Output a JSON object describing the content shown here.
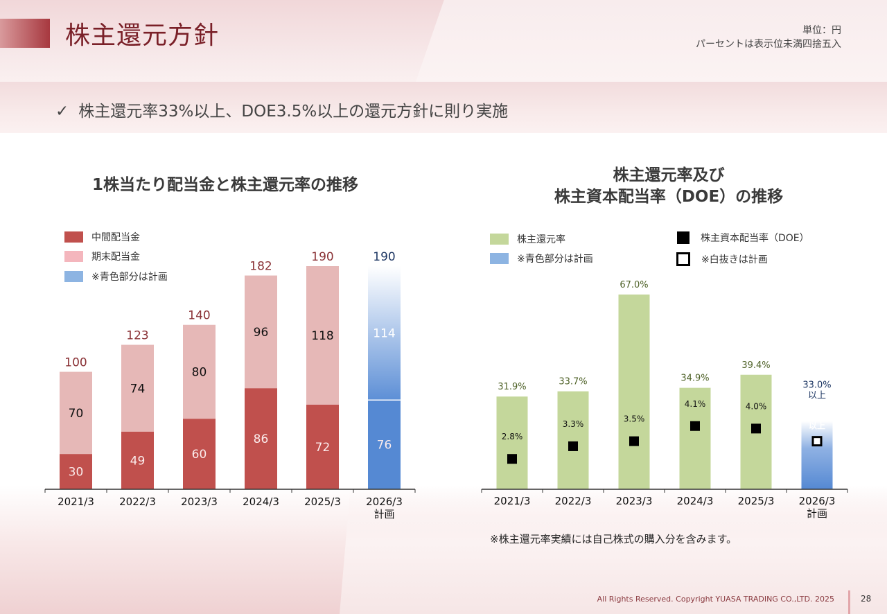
{
  "header": {
    "title": "株主還元方針",
    "unit_line1": "単位：円",
    "unit_line2": "パーセントは表示位未満四捨五入"
  },
  "policy": {
    "check_icon": "✓",
    "text": "株主還元率33%以上、DOE3.5%以上の還元方針に則り実施"
  },
  "colors": {
    "interim": "#c0504d",
    "year_end": "#e6b8b7",
    "plan_blue": "#5589d3",
    "payout_green": "#c4d79b",
    "title_red": "#7a2028",
    "total_label_red": "#8a3236",
    "plan_label_blue": "#1f3864"
  },
  "chart_data": [
    {
      "type": "bar",
      "stacked": true,
      "title": "1株当たり配当金と株主還元率の推移",
      "categories": [
        "2021/3",
        "2022/3",
        "2023/3",
        "2024/3",
        "2025/3",
        "2026/3"
      ],
      "category_sublabels": [
        "",
        "",
        "",
        "",
        "",
        "計画"
      ],
      "series": [
        {
          "name": "中間配当金",
          "values": [
            30,
            49,
            60,
            86,
            72,
            76
          ]
        },
        {
          "name": "期末配当金",
          "values": [
            70,
            74,
            80,
            96,
            118,
            114
          ]
        }
      ],
      "totals": [
        100,
        123,
        140,
        182,
        190,
        190
      ],
      "planned": [
        false,
        false,
        false,
        false,
        false,
        true
      ],
      "legend": [
        {
          "label": "中間配当金",
          "swatch": "interim"
        },
        {
          "label": "期末配当金",
          "swatch": "year_end"
        },
        {
          "label": "※青色部分は計画",
          "swatch": "plan"
        }
      ],
      "legend_position": "top-left",
      "ylim": [
        0,
        200
      ],
      "xlabel": "",
      "ylabel": "",
      "grid": false
    },
    {
      "type": "bar",
      "title_line1": "株主還元率及び",
      "title_line2": "株主資本配当率（DOE）の推移",
      "categories": [
        "2021/3",
        "2022/3",
        "2023/3",
        "2024/3",
        "2025/3",
        "2026/3"
      ],
      "category_sublabels": [
        "",
        "",
        "",
        "",
        "",
        "計画"
      ],
      "series": [
        {
          "name": "株主還元率",
          "type": "bar",
          "values": [
            31.9,
            33.7,
            67.0,
            34.9,
            39.4,
            33.0
          ],
          "labels": [
            "31.9%",
            "33.7%",
            "67.0%",
            "34.9%",
            "39.4%",
            "33.0%"
          ],
          "label_suffix": [
            "",
            "",
            "",
            "",
            "",
            "以上"
          ]
        },
        {
          "name": "株主資本配当率（DOE）",
          "type": "scatter",
          "marker": "square",
          "values": [
            2.8,
            3.3,
            3.5,
            4.1,
            4.0,
            3.5
          ],
          "labels": [
            "2.8%",
            "3.3%",
            "3.5%",
            "4.1%",
            "4.0%",
            "3.5%"
          ],
          "label_suffix": [
            "",
            "",
            "",
            "",
            "",
            "以上"
          ]
        }
      ],
      "planned": [
        false,
        false,
        false,
        false,
        false,
        true
      ],
      "legend": [
        {
          "label": "株主還元率",
          "swatch": "green"
        },
        {
          "label": "※青色部分は計画",
          "swatch": "plan"
        },
        {
          "label": "株主資本配当率（DOE）",
          "swatch": "filled-square"
        },
        {
          "label": "※白抜きは計画",
          "swatch": "open-square"
        }
      ],
      "legend_position": "top",
      "ylim_payout": [
        0,
        75
      ],
      "ylim_doe": [
        0,
        6
      ],
      "xlabel": "",
      "ylabel": "",
      "grid": false,
      "footnote": "※株主還元率実績には自己株式の購入分を含みます。"
    }
  ],
  "footer": {
    "copyright": "All Rights Reserved. Copyright  YUASA TRADING CO.,LTD. 2025",
    "page_number": "28"
  }
}
